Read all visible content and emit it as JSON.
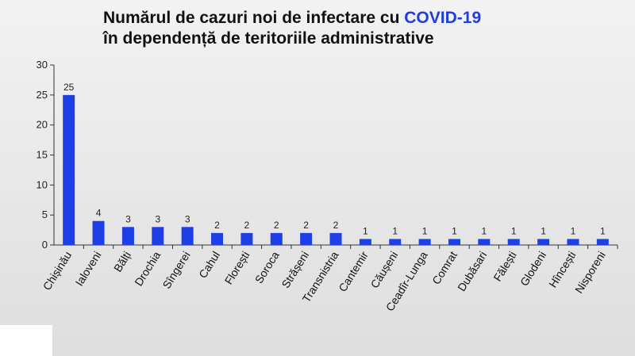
{
  "title": {
    "line1_prefix": "Numărul de cazuri noi de infectare cu ",
    "line1_accent": "COVID-19",
    "line2": "în dependență de teritoriile administrative"
  },
  "colors": {
    "bar": "#1f3fe6",
    "accent": "#1f3fd6"
  },
  "chart_data": {
    "type": "bar",
    "title": "Numărul de cazuri noi de infectare cu COVID-19 în dependență de teritoriile administrative",
    "xlabel": "",
    "ylabel": "",
    "ylim": [
      0,
      30
    ],
    "yticks": [
      0,
      5,
      10,
      15,
      20,
      25,
      30
    ],
    "grid": false,
    "categories": [
      "Chișinău",
      "Ialoveni",
      "Bălți",
      "Drochia",
      "Sîngerei",
      "Cahul",
      "Florești",
      "Soroca",
      "Strășeni",
      "Transnistria",
      "Cantemir",
      "Căușeni",
      "Ceadîr-Lunga",
      "Comrat",
      "Dubăsari",
      "Fălești",
      "Glodeni",
      "Hîncești",
      "Nisporeni"
    ],
    "values": [
      25,
      4,
      3,
      3,
      3,
      2,
      2,
      2,
      2,
      2,
      1,
      1,
      1,
      1,
      1,
      1,
      1,
      1,
      1
    ]
  }
}
